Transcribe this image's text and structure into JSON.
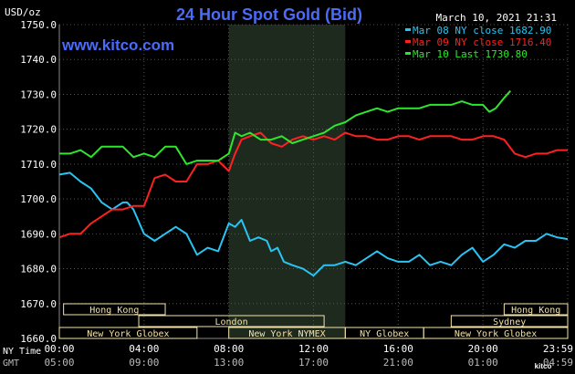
{
  "header": {
    "title": "24 Hour Spot Gold (Bid)",
    "unit": "USD/oz",
    "datetime": "March 10, 2021 21:31",
    "site": "www.kitco.com",
    "kitco_logo": "kitco"
  },
  "colors": {
    "background": "#000000",
    "grid": "#555555",
    "axis_text": "#ffffff",
    "title": "#4a6cf7",
    "nymex_band": "#1f2a1f",
    "session_box": "#f3e3a8",
    "series_mar08": "#29c4f2",
    "series_mar09": "#ff2020",
    "series_mar10": "#2ee62e"
  },
  "chart_data": {
    "type": "line",
    "ylim": [
      1660.0,
      1750.0
    ],
    "yticks": [
      "1750.0",
      "1740.0",
      "1730.0",
      "1720.0",
      "1710.0",
      "1700.0",
      "1690.0",
      "1680.0",
      "1670.0",
      "1660.0"
    ],
    "ytick_values": [
      1750,
      1740,
      1730,
      1720,
      1710,
      1700,
      1690,
      1680,
      1670,
      1660
    ],
    "xlim": [
      0,
      24
    ],
    "xticks": [
      "00:00",
      "04:00",
      "08:00",
      "12:00",
      "16:00",
      "20:00",
      "23:59"
    ],
    "xtick_hours": [
      0,
      4,
      8,
      12,
      16,
      20,
      24
    ],
    "gmt_ticks": [
      "05:00",
      "09:00",
      "13:00",
      "17:00",
      "21:00",
      "01:00",
      "04:59"
    ],
    "row_labels": {
      "ny": "NY Time",
      "gmt": "GMT"
    },
    "legend_placement": "top-right",
    "grid": true,
    "nymex_band_hours": [
      8.0,
      13.5
    ],
    "sessions": [
      {
        "label": "Hong Kong",
        "start": 0.2,
        "end": 5.0,
        "row": 0
      },
      {
        "label": "Hong Kong",
        "start": 21.0,
        "end": 24.0,
        "row": 0
      },
      {
        "label": "London",
        "start": 3.75,
        "end": 12.5,
        "row": 1
      },
      {
        "label": "Sydney",
        "start": 18.5,
        "end": 24.0,
        "row": 1
      },
      {
        "label": "New York Globex",
        "start": 0.0,
        "end": 6.5,
        "row": 2
      },
      {
        "label": "New York NYMEX",
        "start": 8.0,
        "end": 13.5,
        "row": 2
      },
      {
        "label": "NY Globex",
        "start": 13.5,
        "end": 17.2,
        "row": 2
      },
      {
        "label": "New York Globex",
        "start": 17.2,
        "end": 24.0,
        "row": 2
      }
    ],
    "series": [
      {
        "name": "Mar 08 NY close 1682.90",
        "color_key": "series_mar08",
        "x": [
          0,
          0.5,
          1,
          1.5,
          2,
          2.5,
          3,
          3.2,
          3.5,
          4,
          4.5,
          5,
          5.5,
          6,
          6.5,
          7,
          7.5,
          8,
          8.3,
          8.6,
          9,
          9.4,
          9.8,
          10,
          10.3,
          10.6,
          11,
          11.5,
          12,
          12.5,
          13,
          13.5,
          14,
          14.5,
          15,
          15.5,
          16,
          16.5,
          17,
          17.5,
          18,
          18.5,
          19,
          19.5,
          20,
          20.5,
          21,
          21.5,
          22,
          22.5,
          23,
          23.5,
          24
        ],
        "values": [
          1707,
          1707.5,
          1705,
          1703,
          1699,
          1697,
          1699,
          1699,
          1697,
          1690,
          1688,
          1690,
          1692,
          1690,
          1684,
          1686,
          1685,
          1693,
          1692,
          1694,
          1688,
          1689,
          1688,
          1685,
          1686,
          1682,
          1681,
          1680,
          1678,
          1681,
          1681,
          1682,
          1681,
          1683,
          1685,
          1683,
          1682,
          1682,
          1684,
          1681,
          1682,
          1681,
          1684,
          1686,
          1682,
          1684,
          1687,
          1686,
          1688,
          1688,
          1690,
          1689,
          1688.5
        ]
      },
      {
        "name": "Mar 09 NY close 1716.40",
        "color_key": "series_mar09",
        "x": [
          0,
          0.5,
          1,
          1.5,
          2,
          2.5,
          3,
          3.5,
          4,
          4.5,
          5,
          5.5,
          6,
          6.5,
          7,
          7.5,
          8,
          8.3,
          8.6,
          9,
          9.5,
          10,
          10.5,
          11,
          11.5,
          12,
          12.5,
          13,
          13.5,
          14,
          14.5,
          15,
          15.5,
          16,
          16.5,
          17,
          17.5,
          18,
          18.5,
          19,
          19.5,
          20,
          20.5,
          21,
          21.5,
          22,
          22.5,
          23,
          23.5,
          24
        ],
        "values": [
          1689,
          1690,
          1690,
          1693,
          1695,
          1697,
          1697,
          1698,
          1698,
          1706,
          1707,
          1705,
          1705,
          1710,
          1710,
          1711,
          1708,
          1713,
          1717,
          1718,
          1719,
          1716,
          1715,
          1717,
          1718,
          1717,
          1718,
          1717,
          1719,
          1718,
          1718,
          1717,
          1717,
          1718,
          1718,
          1717,
          1718,
          1718,
          1718,
          1717,
          1717,
          1718,
          1718,
          1717,
          1713,
          1712,
          1713,
          1713,
          1714,
          1714
        ]
      },
      {
        "name": "Mar 10 Last 1730.80",
        "color_key": "series_mar10",
        "x": [
          0,
          0.5,
          1,
          1.5,
          2,
          2.5,
          3,
          3.5,
          4,
          4.5,
          5,
          5.5,
          6,
          6.5,
          7,
          7.5,
          8,
          8.3,
          8.6,
          9,
          9.5,
          10,
          10.5,
          11,
          11.5,
          12,
          12.5,
          13,
          13.5,
          14,
          14.5,
          15,
          15.5,
          16,
          16.5,
          17,
          17.5,
          18,
          18.5,
          19,
          19.5,
          20,
          20.3,
          20.6,
          21,
          21.3
        ],
        "values": [
          1713,
          1713,
          1714,
          1712,
          1715,
          1715,
          1715,
          1712,
          1713,
          1712,
          1715,
          1715,
          1710,
          1711,
          1711,
          1711,
          1713,
          1719,
          1718,
          1719,
          1717,
          1717,
          1718,
          1716,
          1717,
          1718,
          1719,
          1721,
          1722,
          1724,
          1725,
          1726,
          1725,
          1726,
          1726,
          1726,
          1727,
          1727,
          1727,
          1728,
          1727,
          1727,
          1725,
          1726,
          1729,
          1731
        ]
      }
    ]
  }
}
